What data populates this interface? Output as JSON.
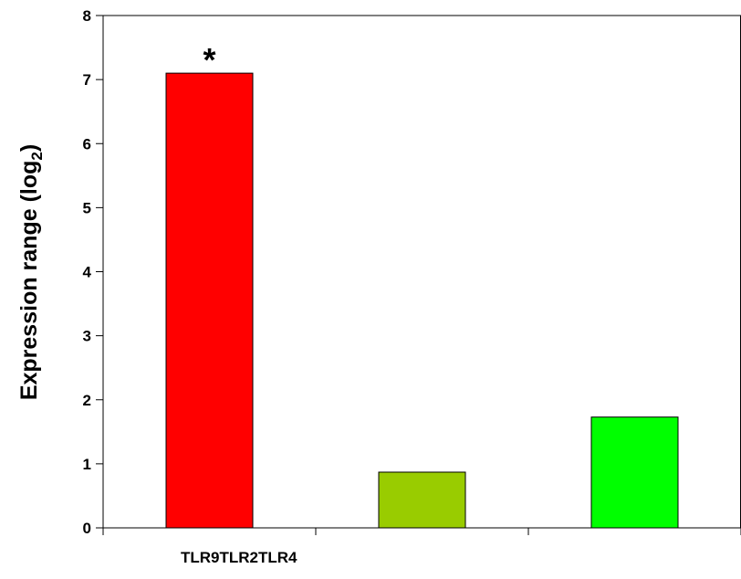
{
  "chart_data": {
    "type": "bar",
    "ylabel_main": "Expression range (log",
    "ylabel_sub": "2",
    "ylabel_close": ")",
    "ylim": [
      0,
      8
    ],
    "yticks": [
      "0",
      "1",
      "2",
      "3",
      "4",
      "5",
      "6",
      "7",
      "8"
    ],
    "categories": [
      "TLR9",
      "TLR2",
      "TLR4"
    ],
    "xlabel_text": "TLR9TLR2TLR4",
    "values": [
      7.1,
      0.87,
      1.73
    ],
    "colors": [
      "#ff0000",
      "#99cc00",
      "#00ff00"
    ],
    "annotations": [
      {
        "category": "TLR9",
        "text": "*"
      }
    ],
    "grid": false,
    "legend": "none"
  }
}
